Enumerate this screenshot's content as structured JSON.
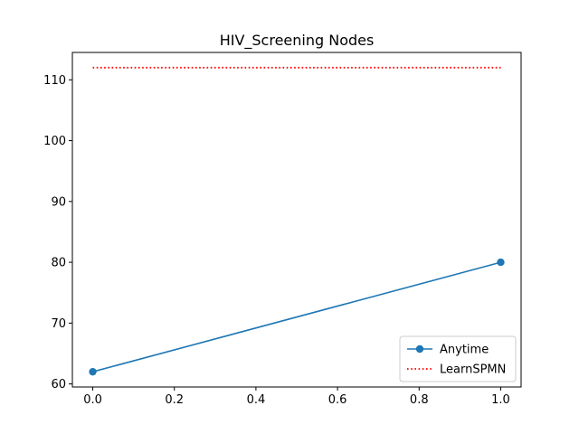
{
  "chart_data": {
    "type": "line",
    "title": "HIV_Screening Nodes",
    "xlabel": "",
    "ylabel": "",
    "xlim": [
      -0.05,
      1.05
    ],
    "ylim": [
      59.5,
      114.5
    ],
    "xticks": [
      0.0,
      0.2,
      0.4,
      0.6,
      0.8,
      1.0
    ],
    "xtick_labels": [
      "0.0",
      "0.2",
      "0.4",
      "0.6",
      "0.8",
      "1.0"
    ],
    "yticks": [
      60,
      70,
      80,
      90,
      100,
      110
    ],
    "ytick_labels": [
      "60",
      "70",
      "80",
      "90",
      "100",
      "110"
    ],
    "grid": false,
    "legend_position": "lower-right",
    "series": [
      {
        "name": "Anytime",
        "x": [
          0.0,
          1.0
        ],
        "y": [
          62,
          80
        ],
        "color": "#1f77b4",
        "style": "solid",
        "marker": "circle"
      },
      {
        "name": "LearnSPMN",
        "x": [
          0.0,
          1.0
        ],
        "y": [
          112,
          112
        ],
        "color": "#ff0000",
        "style": "dotted",
        "marker": "none"
      }
    ]
  }
}
